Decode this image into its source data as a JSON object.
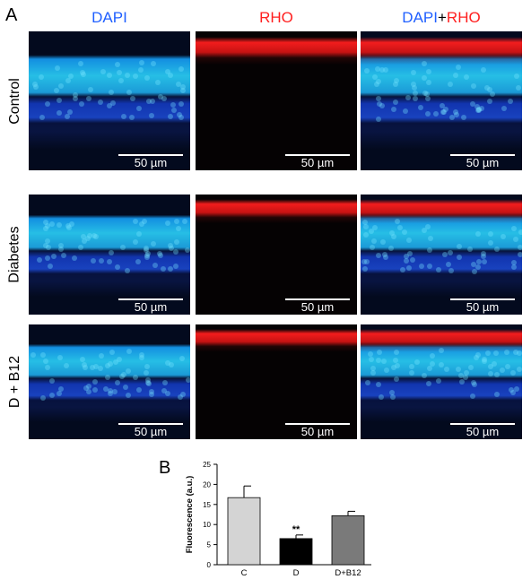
{
  "panels": {
    "a_label": "A",
    "b_label": "B"
  },
  "columns": {
    "dapi": "DAPI",
    "rho": "RHO",
    "merged_dapi": "DAPI",
    "merged_plus": "+",
    "merged_rho": "RHO"
  },
  "rows": {
    "control": "Control",
    "diabetes": "Diabetes",
    "d_b12": "D + B12"
  },
  "scale_bar": "50 µm",
  "colors": {
    "dapi_blue": "#1f5fff",
    "rho_red": "#ff1f1f",
    "bar_control": "#d4d4d4",
    "bar_diabetes": "#000000",
    "bar_d_b12": "#7a7a7a"
  },
  "chart_data": {
    "type": "bar",
    "categories": [
      "C",
      "D",
      "D+B12"
    ],
    "values": [
      16.7,
      6.5,
      12.2
    ],
    "errors": [
      2.9,
      0.9,
      1.1
    ],
    "ylabel": "Fluorescence (a.u.)",
    "ylim": [
      0,
      25
    ],
    "yticks": [
      "0",
      "5",
      "10",
      "15",
      "20",
      "25"
    ],
    "annotations": [
      {
        "category": "D",
        "text": "**"
      }
    ],
    "grid": false
  }
}
